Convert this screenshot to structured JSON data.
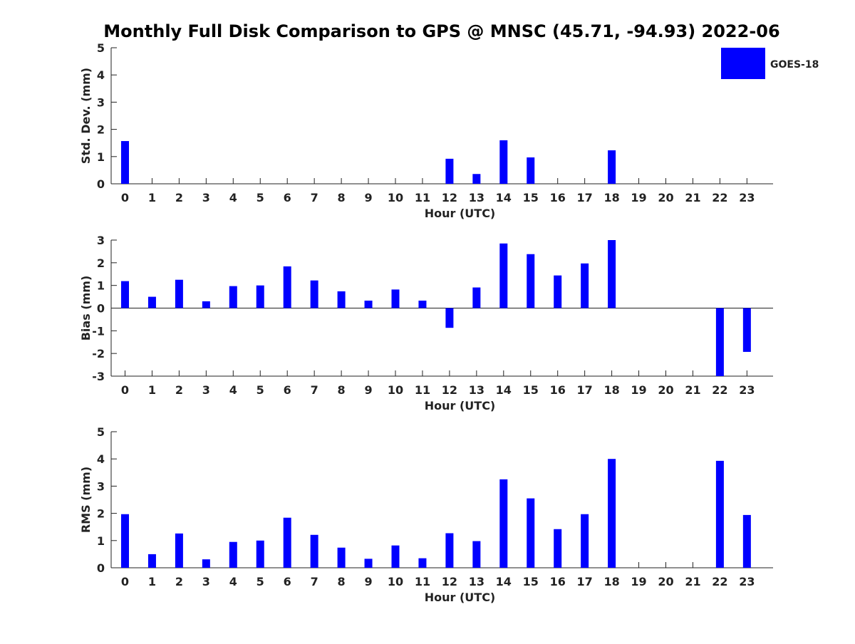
{
  "title": "Monthly Full Disk Comparison to GPS @ MNSC (45.71, -94.93) 2022-06",
  "legend": {
    "label": "GOES-18",
    "color": "#0000ff"
  },
  "chart_data": [
    {
      "type": "bar",
      "name": "std_dev",
      "categories": [
        "0",
        "1",
        "2",
        "3",
        "4",
        "5",
        "6",
        "7",
        "8",
        "9",
        "10",
        "11",
        "12",
        "13",
        "14",
        "15",
        "16",
        "17",
        "18",
        "19",
        "20",
        "21",
        "22",
        "23"
      ],
      "series": [
        {
          "name": "GOES-18",
          "color": "#0000ff",
          "values": [
            1.57,
            null,
            null,
            null,
            null,
            null,
            null,
            null,
            null,
            null,
            null,
            null,
            0.92,
            0.36,
            1.6,
            0.97,
            null,
            null,
            1.23,
            null,
            null,
            null,
            null,
            null
          ]
        }
      ],
      "xlabel": "Hour (UTC)",
      "ylabel": "Std. Dev. (mm)",
      "ylim": [
        0,
        5
      ],
      "yticks": [
        "0",
        "1",
        "2",
        "3",
        "4",
        "5"
      ],
      "grid": false,
      "legend_position": "top-right"
    },
    {
      "type": "bar",
      "name": "bias",
      "categories": [
        "0",
        "1",
        "2",
        "3",
        "4",
        "5",
        "6",
        "7",
        "8",
        "9",
        "10",
        "11",
        "12",
        "13",
        "14",
        "15",
        "16",
        "17",
        "18",
        "19",
        "20",
        "21",
        "22",
        "23"
      ],
      "series": [
        {
          "name": "GOES-18",
          "color": "#0000ff",
          "values": [
            1.19,
            0.5,
            1.25,
            0.3,
            0.97,
            1.0,
            1.84,
            1.22,
            0.74,
            0.33,
            0.82,
            0.33,
            -0.87,
            0.91,
            2.85,
            2.38,
            1.44,
            1.97,
            3.0,
            null,
            null,
            null,
            -3.0,
            -1.93
          ]
        }
      ],
      "xlabel": "Hour (UTC)",
      "ylabel": "Bias (mm)",
      "ylim": [
        -3,
        3
      ],
      "yticks": [
        "-3",
        "-2",
        "-1",
        "0",
        "1",
        "2",
        "3"
      ],
      "zero_line": true,
      "grid": false
    },
    {
      "type": "bar",
      "name": "rms",
      "categories": [
        "0",
        "1",
        "2",
        "3",
        "4",
        "5",
        "6",
        "7",
        "8",
        "9",
        "10",
        "11",
        "12",
        "13",
        "14",
        "15",
        "16",
        "17",
        "18",
        "19",
        "20",
        "21",
        "22",
        "23"
      ],
      "series": [
        {
          "name": "GOES-18",
          "color": "#0000ff",
          "values": [
            1.97,
            0.5,
            1.26,
            0.31,
            0.95,
            1.0,
            1.84,
            1.21,
            0.74,
            0.33,
            0.82,
            0.35,
            1.27,
            0.98,
            3.25,
            2.55,
            1.42,
            1.97,
            4.0,
            null,
            null,
            null,
            3.93,
            1.94
          ]
        }
      ],
      "xlabel": "Hour (UTC)",
      "ylabel": "RMS (mm)",
      "ylim": [
        0,
        5
      ],
      "yticks": [
        "0",
        "1",
        "2",
        "3",
        "4",
        "5"
      ],
      "grid": false
    }
  ]
}
